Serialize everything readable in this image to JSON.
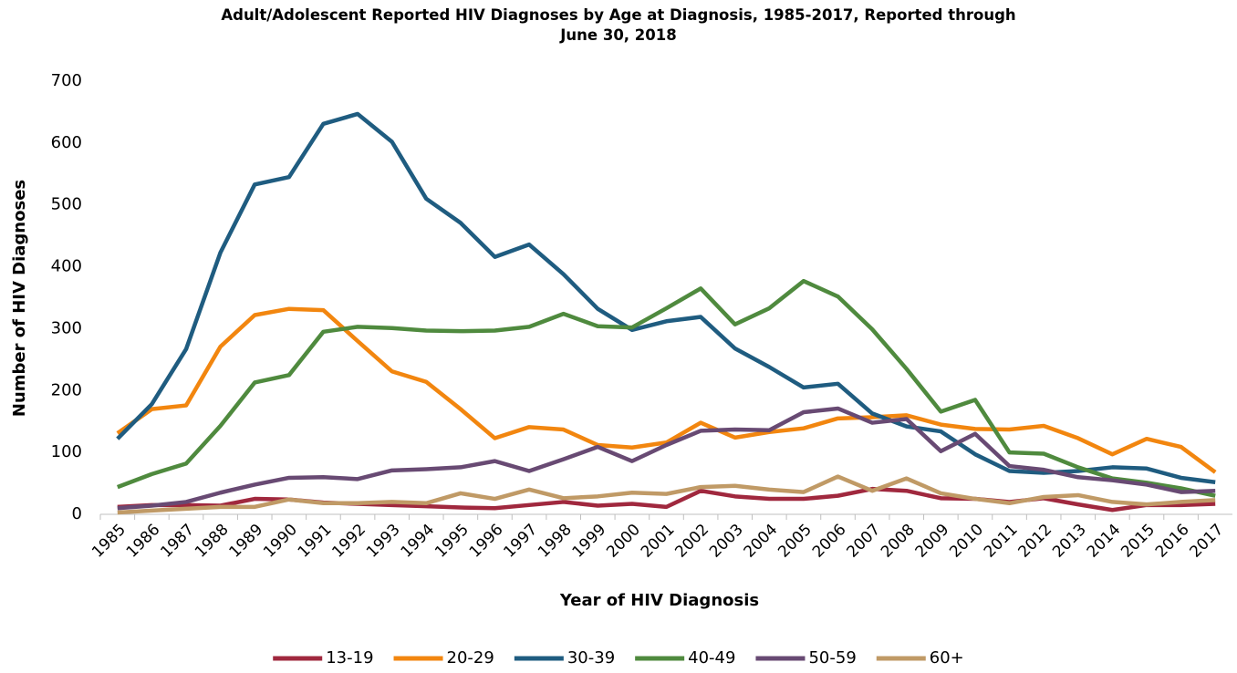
{
  "chart_data": {
    "type": "line",
    "title": "Adult/Adolescent Reported HIV Diagnoses by Age at Diagnosis, 1985-2017, Reported through June 30, 2018",
    "x_label": "Year of HIV Diagnosis",
    "y_label": "Number of HIV Diagnoses",
    "categories": [
      "1985",
      "1986",
      "1987",
      "1988",
      "1989",
      "1990",
      "1991",
      "1992",
      "1993",
      "1994",
      "1995",
      "1996",
      "1997",
      "1998",
      "1999",
      "2000",
      "2001",
      "2002",
      "2003",
      "2004",
      "2005",
      "2006",
      "2007",
      "2008",
      "2009",
      "2010",
      "2011",
      "2012",
      "2013",
      "2014",
      "2015",
      "2016",
      "2017"
    ],
    "ylim": [
      0,
      700
    ],
    "yticks": [
      0,
      100,
      200,
      300,
      400,
      500,
      600,
      700
    ],
    "legend": "bottom",
    "series": [
      {
        "name": "13-19",
        "color": "#a0283e",
        "values": [
          12,
          15,
          15,
          14,
          25,
          24,
          19,
          17,
          15,
          13,
          11,
          10,
          15,
          20,
          14,
          17,
          12,
          38,
          29,
          25,
          25,
          30,
          41,
          38,
          26,
          25,
          20,
          26,
          16,
          7,
          15,
          15,
          17
        ]
      },
      {
        "name": "20-29",
        "color": "#f2860f",
        "values": [
          131,
          170,
          176,
          271,
          322,
          332,
          330,
          280,
          231,
          214,
          170,
          123,
          141,
          137,
          112,
          108,
          116,
          148,
          124,
          133,
          139,
          155,
          157,
          160,
          145,
          138,
          137,
          143,
          123,
          97,
          122,
          109,
          68
        ]
      },
      {
        "name": "30-39",
        "color": "#1f5c80",
        "values": [
          122,
          178,
          267,
          423,
          533,
          545,
          631,
          647,
          602,
          510,
          471,
          416,
          436,
          388,
          332,
          298,
          312,
          319,
          268,
          238,
          205,
          211,
          163,
          142,
          134,
          97,
          70,
          67,
          70,
          76,
          74,
          59,
          52
        ]
      },
      {
        "name": "40-49",
        "color": "#4f8a3e",
        "values": [
          44,
          65,
          82,
          143,
          213,
          225,
          295,
          303,
          301,
          297,
          296,
          297,
          303,
          324,
          304,
          302,
          333,
          365,
          307,
          333,
          377,
          352,
          299,
          235,
          166,
          185,
          100,
          98,
          76,
          58,
          51,
          42,
          30
        ]
      },
      {
        "name": "50-59",
        "color": "#684a73",
        "values": [
          10,
          14,
          20,
          35,
          48,
          59,
          60,
          57,
          71,
          73,
          76,
          86,
          70,
          89,
          109,
          86,
          112,
          135,
          137,
          136,
          165,
          171,
          148,
          154,
          102,
          130,
          78,
          72,
          60,
          55,
          48,
          36,
          38
        ]
      },
      {
        "name": "60+",
        "color": "#c09a66",
        "values": [
          3,
          6,
          9,
          12,
          12,
          24,
          18,
          18,
          20,
          18,
          34,
          25,
          40,
          26,
          29,
          35,
          33,
          44,
          46,
          40,
          36,
          61,
          38,
          58,
          34,
          25,
          18,
          28,
          31,
          20,
          16,
          20,
          23
        ]
      }
    ]
  }
}
